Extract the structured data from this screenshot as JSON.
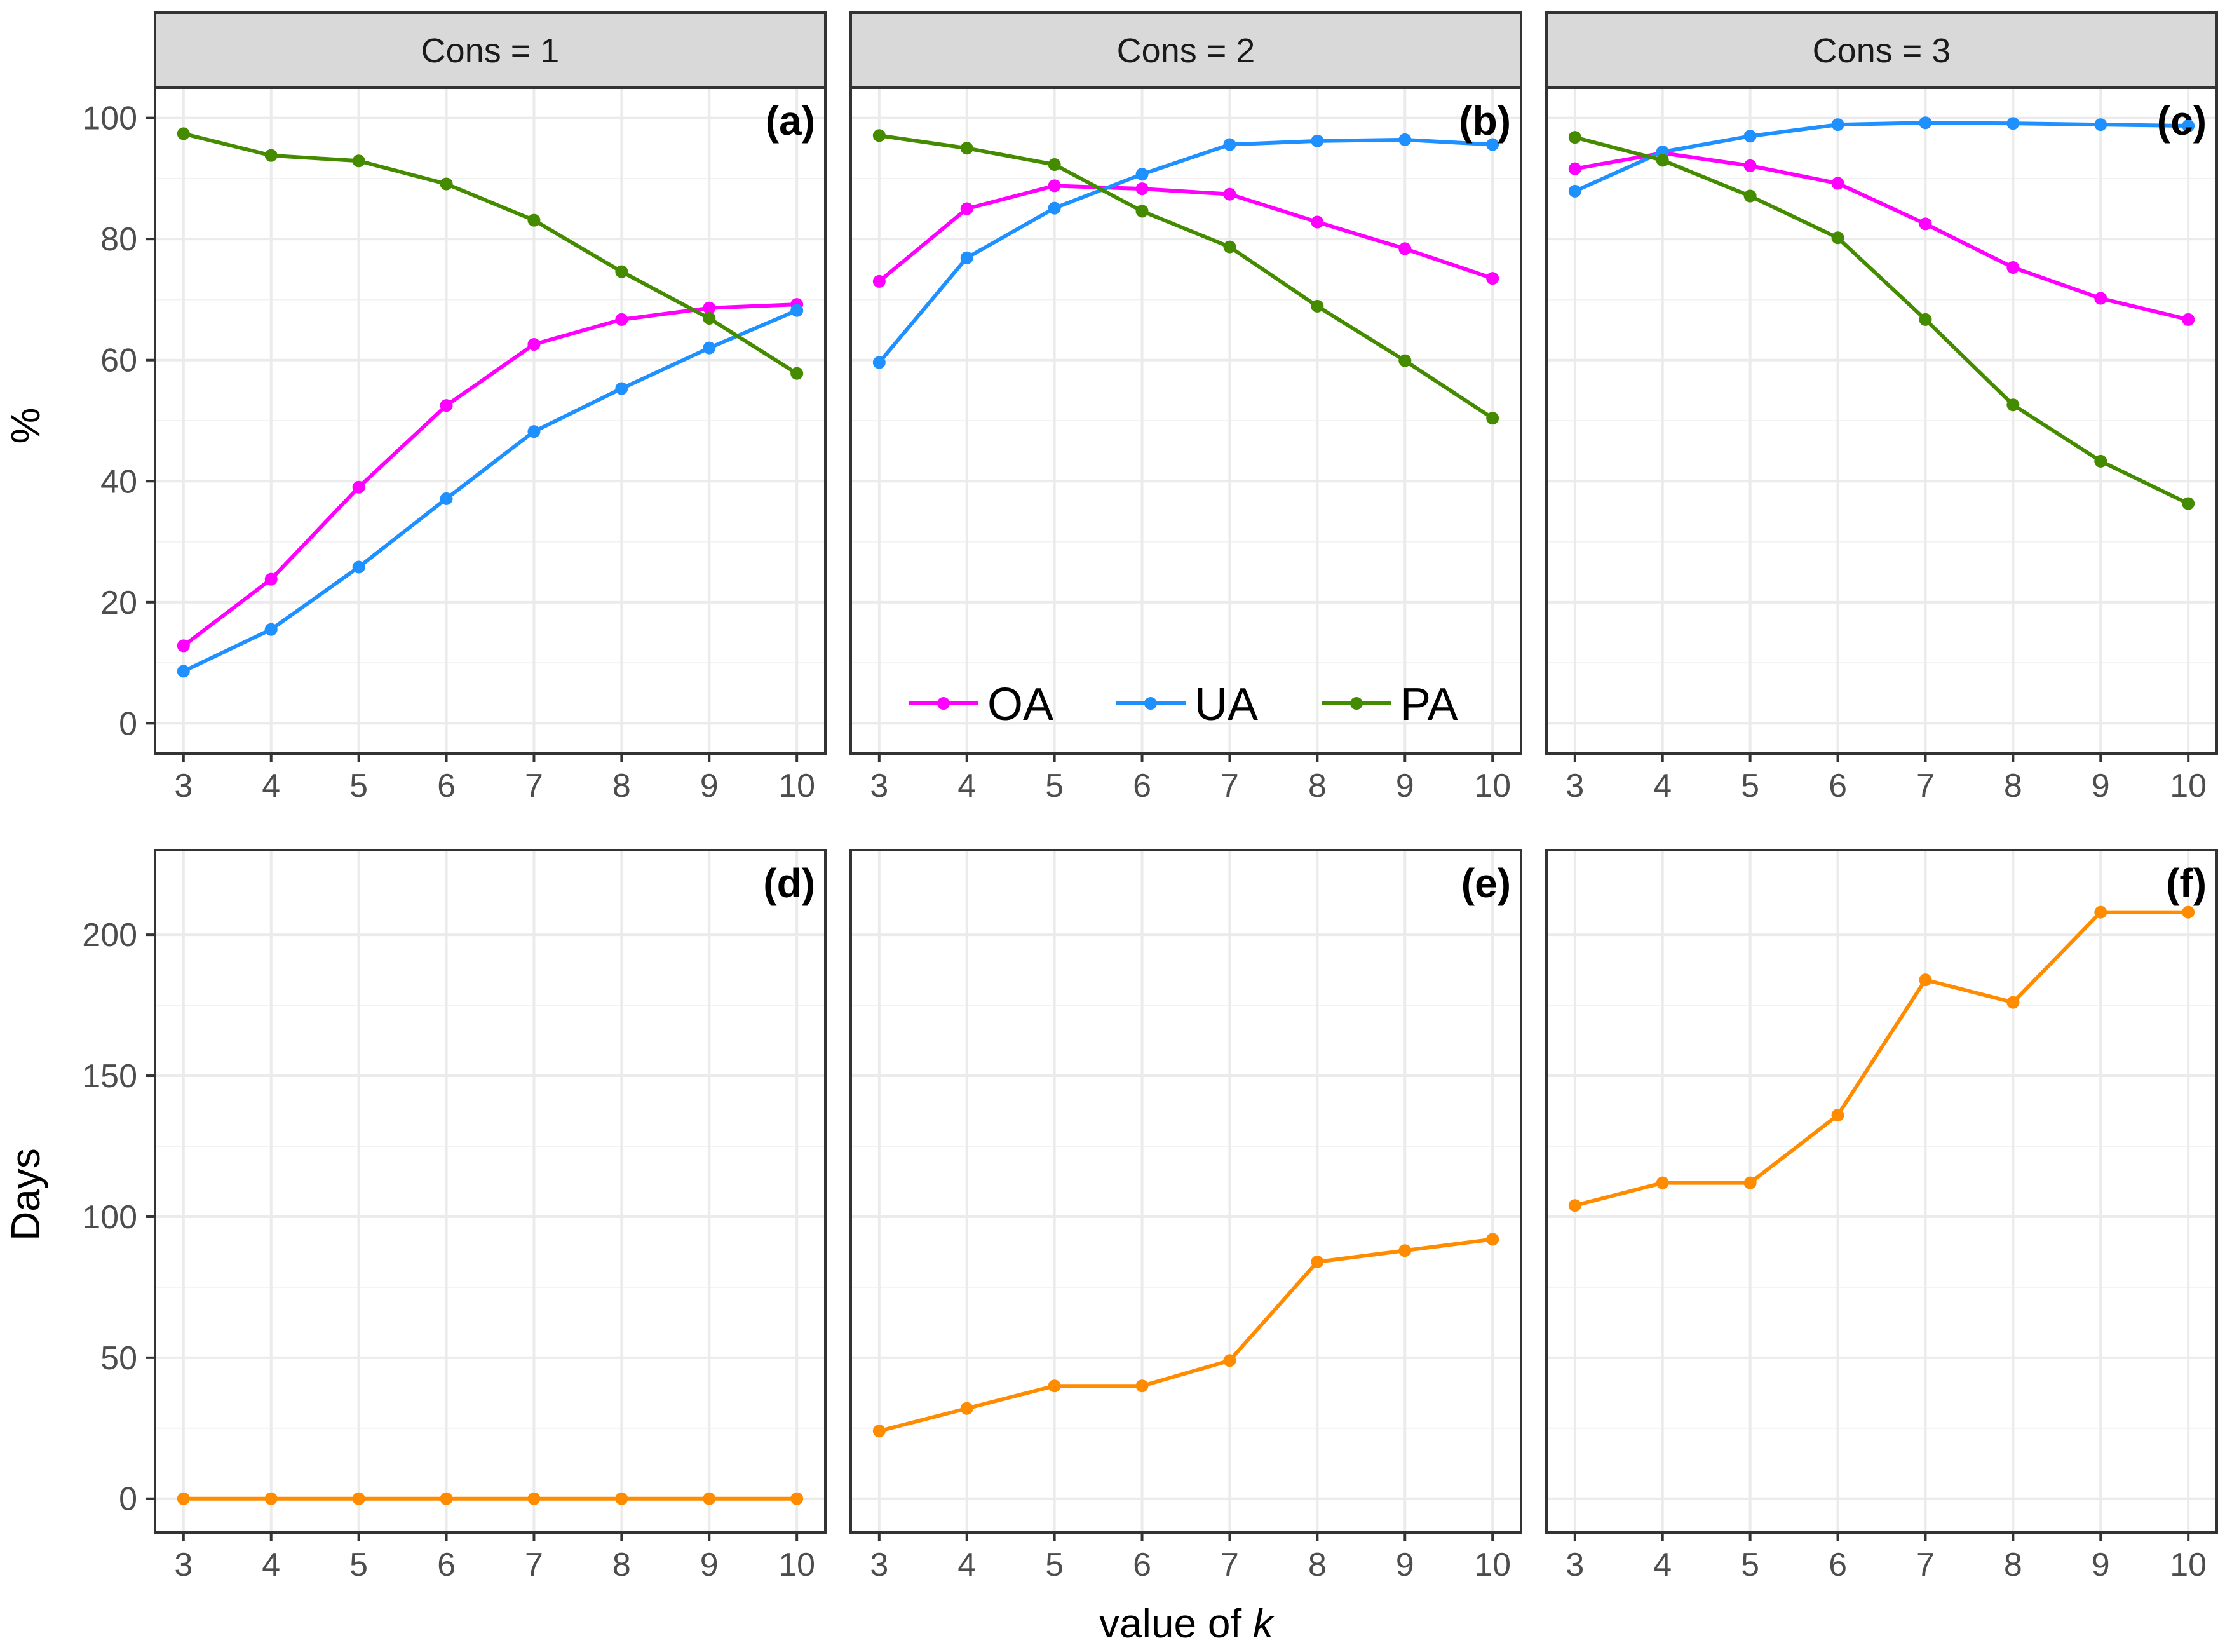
{
  "chart_data": {
    "type": "line",
    "x": [
      3,
      4,
      5,
      6,
      7,
      8,
      9,
      10
    ],
    "xlabel": {
      "prefix": "value of ",
      "italic": "k"
    },
    "columns": [
      "Cons = 1",
      "Cons = 2",
      "Cons = 3"
    ],
    "rows": [
      {
        "ylabel": "%",
        "ylim": [
          -5,
          105
        ],
        "yticks": [
          0,
          20,
          40,
          60,
          80,
          100
        ]
      },
      {
        "ylabel": "Days",
        "ylim": [
          -12,
          230
        ],
        "yticks": [
          0,
          50,
          100,
          150,
          200
        ]
      }
    ],
    "colors": {
      "OA": "#ff00ff",
      "UA": "#1e90ff",
      "PA": "#458b00",
      "Days": "#ff8c00"
    },
    "legend": {
      "placement": "bottom of panel (b)",
      "entries": [
        "OA",
        "UA",
        "PA"
      ]
    },
    "panels": [
      {
        "tag": "(a)",
        "row": 0,
        "col": 0,
        "series": [
          {
            "name": "OA",
            "values": [
              12.8,
              23.8,
              39.0,
              52.5,
              62.6,
              66.7,
              68.6,
              69.2
            ]
          },
          {
            "name": "UA",
            "values": [
              8.6,
              15.5,
              25.8,
              37.1,
              48.2,
              55.3,
              62.0,
              68.2
            ]
          },
          {
            "name": "PA",
            "values": [
              97.4,
              93.8,
              92.9,
              89.1,
              83.1,
              74.6,
              66.9,
              57.8
            ]
          }
        ]
      },
      {
        "tag": "(b)",
        "row": 0,
        "col": 1,
        "series": [
          {
            "name": "OA",
            "values": [
              73.0,
              85.0,
              88.8,
              88.3,
              87.4,
              82.8,
              78.4,
              73.5
            ]
          },
          {
            "name": "UA",
            "values": [
              59.6,
              76.9,
              85.1,
              90.7,
              95.6,
              96.2,
              96.4,
              95.6
            ]
          },
          {
            "name": "PA",
            "values": [
              97.1,
              95.0,
              92.3,
              84.6,
              78.7,
              68.9,
              59.9,
              50.4
            ]
          }
        ]
      },
      {
        "tag": "(c)",
        "row": 0,
        "col": 2,
        "series": [
          {
            "name": "OA",
            "values": [
              91.6,
              94.2,
              92.1,
              89.2,
              82.5,
              75.3,
              70.2,
              66.7
            ]
          },
          {
            "name": "UA",
            "values": [
              87.9,
              94.4,
              97.0,
              98.9,
              99.2,
              99.1,
              98.9,
              98.7
            ]
          },
          {
            "name": "PA",
            "values": [
              96.8,
              93.0,
              87.1,
              80.2,
              66.7,
              52.6,
              43.3,
              36.3
            ]
          }
        ]
      },
      {
        "tag": "(d)",
        "row": 1,
        "col": 0,
        "series": [
          {
            "name": "Days",
            "values": [
              0,
              0,
              0,
              0,
              0,
              0,
              0,
              0
            ]
          }
        ]
      },
      {
        "tag": "(e)",
        "row": 1,
        "col": 1,
        "series": [
          {
            "name": "Days",
            "values": [
              24,
              32,
              40,
              40,
              49,
              84,
              88,
              92
            ]
          }
        ]
      },
      {
        "tag": "(f)",
        "row": 1,
        "col": 2,
        "series": [
          {
            "name": "Days",
            "values": [
              104,
              112,
              112,
              136,
              184,
              176,
              208,
              208
            ]
          }
        ]
      }
    ]
  }
}
